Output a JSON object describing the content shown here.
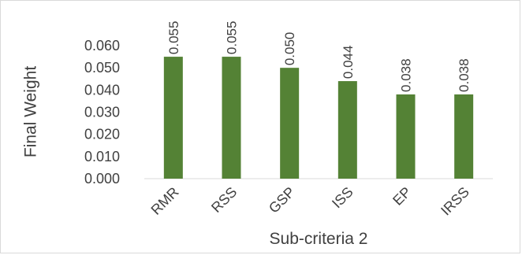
{
  "chart_data": {
    "type": "bar",
    "title": "",
    "xlabel": "Sub-criteria 2",
    "ylabel": "Final Weight",
    "categories": [
      "RMR",
      "RSS",
      "GSP",
      "ISS",
      "EP",
      "IRSS"
    ],
    "values": [
      0.055,
      0.055,
      0.05,
      0.044,
      0.038,
      0.038
    ],
    "value_labels": [
      "0.055",
      "0.055",
      "0.050",
      "0.044",
      "0.038",
      "0.038"
    ],
    "yticks": [
      "0.000",
      "0.010",
      "0.020",
      "0.030",
      "0.040",
      "0.050",
      "0.060"
    ],
    "ylim": [
      0,
      0.06
    ],
    "bar_color": "#548235",
    "grid": false,
    "legend": "none"
  }
}
